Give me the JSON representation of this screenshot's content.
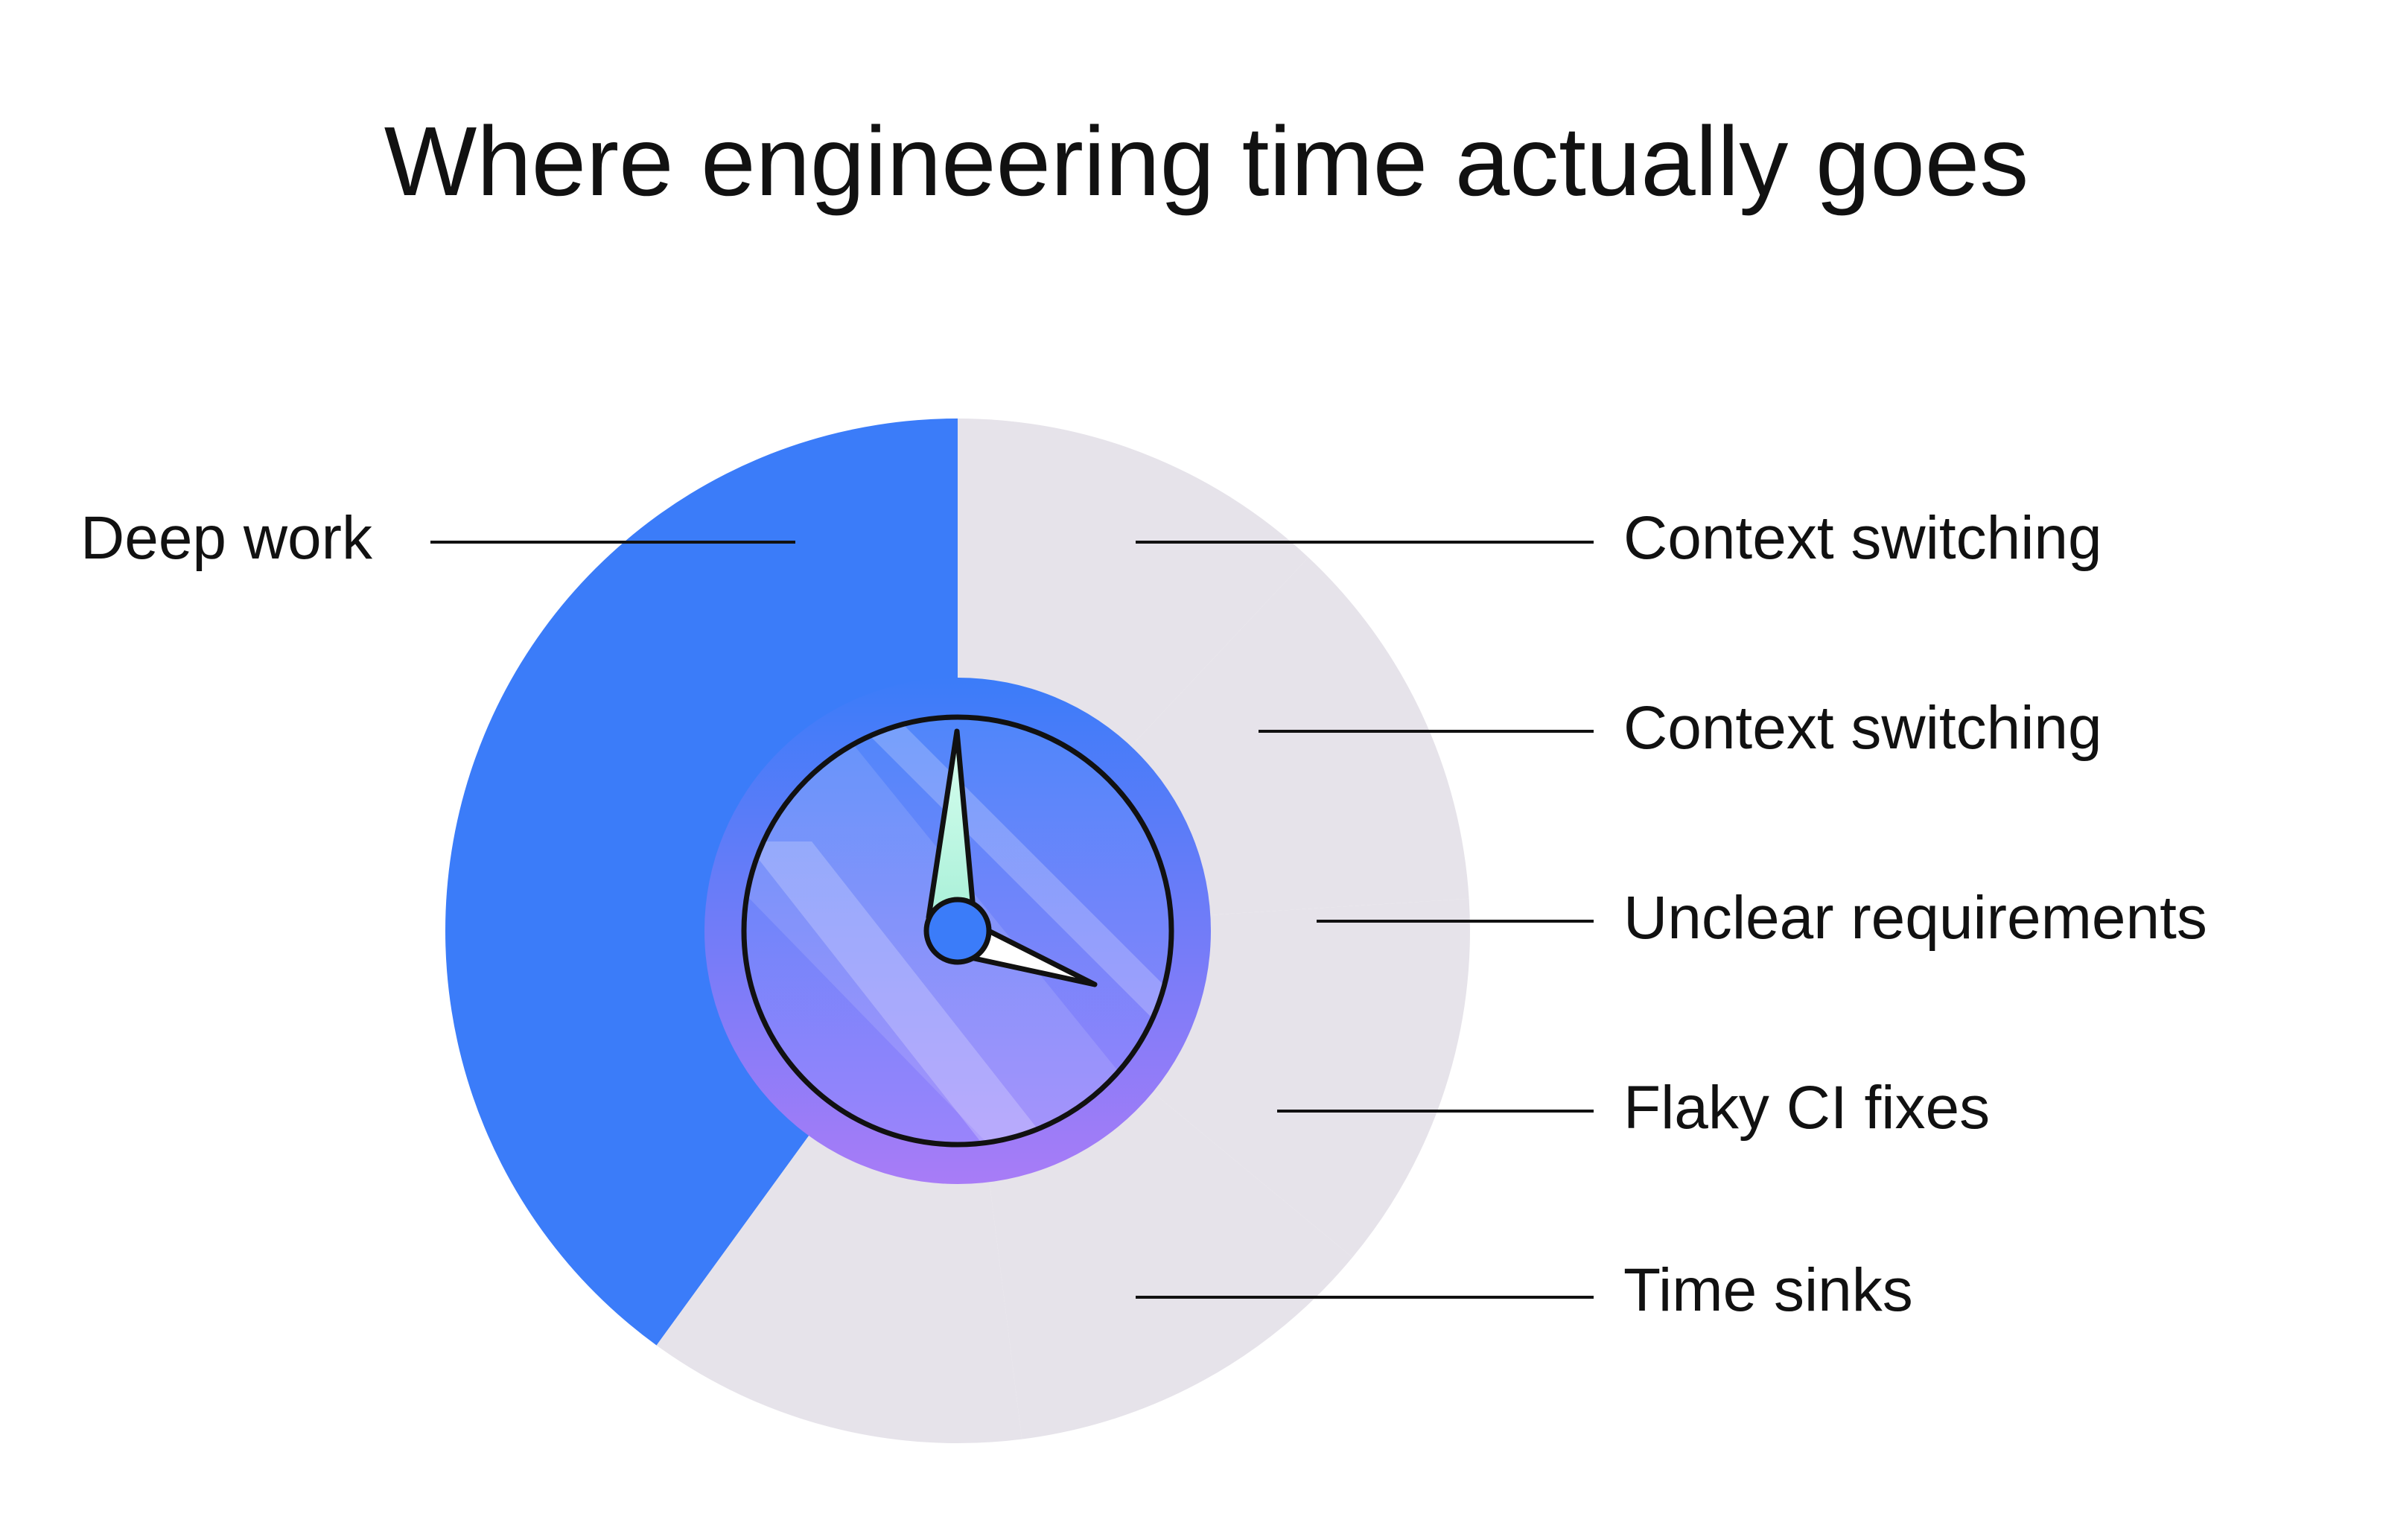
{
  "chart_data": {
    "type": "pie",
    "title": "Where engineering time actually goes",
    "slices": [
      {
        "label": "Deep work",
        "value": 40,
        "color": "#3b7cf9"
      },
      {
        "label": "Context switching",
        "value": 12,
        "color": "#e6e3ea"
      },
      {
        "label": "Context switching",
        "value": 12,
        "color": "#e6e3ea"
      },
      {
        "label": "Unclear requirements",
        "value": 12,
        "color": "#e6e3ea"
      },
      {
        "label": "Flaky CI fixes",
        "value": 12,
        "color": "#e6e3ea"
      },
      {
        "label": "Time sinks",
        "value": 12,
        "color": "#e6e3ea"
      }
    ],
    "legend": "leader-line labels",
    "center_icon": "clock-icon"
  },
  "colors": {
    "accent": "#3b7cf9",
    "muted_slice": "#e6e3ea",
    "clock_ring_top": "#3b7cf9",
    "clock_ring_bottom": "#a87cf7",
    "text": "#111111"
  }
}
